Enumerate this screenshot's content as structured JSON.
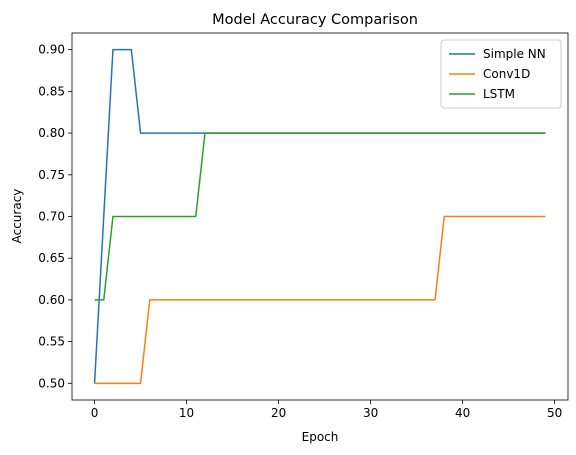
{
  "chart_data": {
    "type": "line",
    "title": "Model Accuracy Comparison",
    "xlabel": "Epoch",
    "ylabel": "Accuracy",
    "xlim": [
      -2.45,
      51.45
    ],
    "ylim": [
      0.48,
      0.92
    ],
    "xticks": [
      0,
      10,
      20,
      30,
      40,
      50
    ],
    "xtick_labels": [
      "0",
      "10",
      "20",
      "30",
      "40",
      "50"
    ],
    "yticks": [
      0.5,
      0.55,
      0.6,
      0.65,
      0.7,
      0.75,
      0.8,
      0.85,
      0.9
    ],
    "ytick_labels": [
      "0.50",
      "0.55",
      "0.60",
      "0.65",
      "0.70",
      "0.75",
      "0.80",
      "0.85",
      "0.90"
    ],
    "grid": false,
    "legend_position": "top-right",
    "x": [
      0,
      1,
      2,
      3,
      4,
      5,
      6,
      7,
      8,
      9,
      10,
      11,
      12,
      13,
      14,
      15,
      16,
      17,
      18,
      19,
      20,
      21,
      22,
      23,
      24,
      25,
      26,
      27,
      28,
      29,
      30,
      31,
      32,
      33,
      34,
      35,
      36,
      37,
      38,
      39,
      40,
      41,
      42,
      43,
      44,
      45,
      46,
      47,
      48,
      49
    ],
    "series": [
      {
        "name": "Simple NN",
        "color": "#1f77b4",
        "values": [
          0.5,
          0.7,
          0.9,
          0.9,
          0.9,
          0.8,
          0.8,
          0.8,
          0.8,
          0.8,
          0.8,
          0.8,
          0.8,
          0.8,
          0.8,
          0.8,
          0.8,
          0.8,
          0.8,
          0.8,
          0.8,
          0.8,
          0.8,
          0.8,
          0.8,
          0.8,
          0.8,
          0.8,
          0.8,
          0.8,
          0.8,
          0.8,
          0.8,
          0.8,
          0.8,
          0.8,
          0.8,
          0.8,
          0.8,
          0.8,
          0.8,
          0.8,
          0.8,
          0.8,
          0.8,
          0.8,
          0.8,
          0.8,
          0.8,
          0.8
        ]
      },
      {
        "name": "Conv1D",
        "color": "#ff7f0e",
        "values": [
          0.5,
          0.5,
          0.5,
          0.5,
          0.5,
          0.5,
          0.6,
          0.6,
          0.6,
          0.6,
          0.6,
          0.6,
          0.6,
          0.6,
          0.6,
          0.6,
          0.6,
          0.6,
          0.6,
          0.6,
          0.6,
          0.6,
          0.6,
          0.6,
          0.6,
          0.6,
          0.6,
          0.6,
          0.6,
          0.6,
          0.6,
          0.6,
          0.6,
          0.6,
          0.6,
          0.6,
          0.6,
          0.6,
          0.7,
          0.7,
          0.7,
          0.7,
          0.7,
          0.7,
          0.7,
          0.7,
          0.7,
          0.7,
          0.7,
          0.7
        ]
      },
      {
        "name": "LSTM",
        "color": "#2ca02c",
        "values": [
          0.6,
          0.6,
          0.7,
          0.7,
          0.7,
          0.7,
          0.7,
          0.7,
          0.7,
          0.7,
          0.7,
          0.7,
          0.8,
          0.8,
          0.8,
          0.8,
          0.8,
          0.8,
          0.8,
          0.8,
          0.8,
          0.8,
          0.8,
          0.8,
          0.8,
          0.8,
          0.8,
          0.8,
          0.8,
          0.8,
          0.8,
          0.8,
          0.8,
          0.8,
          0.8,
          0.8,
          0.8,
          0.8,
          0.8,
          0.8,
          0.8,
          0.8,
          0.8,
          0.8,
          0.8,
          0.8,
          0.8,
          0.8,
          0.8,
          0.8
        ]
      }
    ]
  }
}
